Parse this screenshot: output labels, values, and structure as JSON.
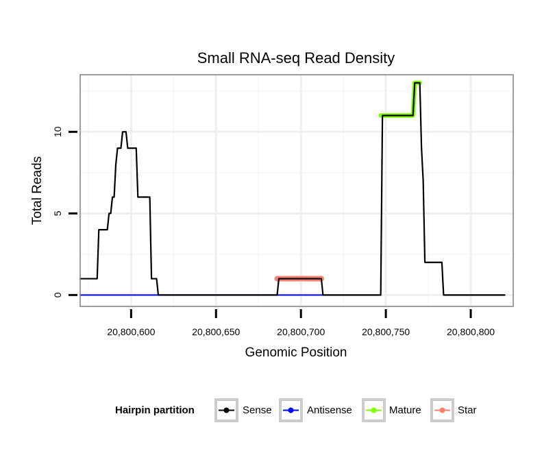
{
  "chart_data": {
    "type": "line",
    "title": "Small RNA-seq Read Density",
    "xlabel": "Genomic Position",
    "ylabel": "Total Reads",
    "xlim": [
      20800570,
      20800825
    ],
    "ylim": [
      -0.7,
      13.5
    ],
    "x_ticks": [
      20800600,
      20800650,
      20800700,
      20800750,
      20800800
    ],
    "x_tick_labels": [
      "20,800,600",
      "20,800,650",
      "20,800,700",
      "20,800,750",
      "20,800,800"
    ],
    "y_ticks": [
      0,
      5,
      10
    ],
    "y_tick_labels": [
      "0",
      "5",
      "10"
    ],
    "grid": true,
    "legend": {
      "title": "Hairpin partition",
      "position": "bottom",
      "entries": [
        "Sense",
        "Antisense",
        "Mature",
        "Star"
      ]
    },
    "series": [
      {
        "name": "Sense",
        "color": "#000000",
        "points": [
          [
            20800570,
            1
          ],
          [
            20800580,
            1
          ],
          [
            20800581,
            4
          ],
          [
            20800586,
            4
          ],
          [
            20800587,
            5
          ],
          [
            20800588,
            5
          ],
          [
            20800589,
            6
          ],
          [
            20800590,
            6
          ],
          [
            20800591,
            8
          ],
          [
            20800592,
            9
          ],
          [
            20800594,
            9
          ],
          [
            20800595,
            10
          ],
          [
            20800597,
            10
          ],
          [
            20800598,
            9
          ],
          [
            20800603,
            9
          ],
          [
            20800604,
            6
          ],
          [
            20800611,
            6
          ],
          [
            20800612,
            1
          ],
          [
            20800615,
            1
          ],
          [
            20800616,
            0
          ],
          [
            20800686,
            0
          ],
          [
            20800687,
            1
          ],
          [
            20800712,
            1
          ],
          [
            20800713,
            0
          ],
          [
            20800747,
            0
          ],
          [
            20800748,
            11
          ],
          [
            20800766,
            11
          ],
          [
            20800767,
            13
          ],
          [
            20800770,
            13
          ],
          [
            20800771,
            9
          ],
          [
            20800772,
            7
          ],
          [
            20800773,
            2
          ],
          [
            20800783,
            2
          ],
          [
            20800784,
            0
          ],
          [
            20800820,
            0
          ]
        ]
      },
      {
        "name": "Antisense",
        "color": "#0000ff",
        "points": [
          [
            20800570,
            0
          ],
          [
            20800713,
            0
          ]
        ]
      },
      {
        "name": "Mature",
        "color": "#7fff00",
        "points": [
          [
            20800747,
            11
          ],
          [
            20800766,
            11
          ],
          [
            20800767,
            13
          ],
          [
            20800770,
            13
          ]
        ]
      },
      {
        "name": "Star",
        "color": "#fa8072",
        "points": [
          [
            20800686,
            1
          ],
          [
            20800712,
            1
          ]
        ]
      }
    ]
  }
}
